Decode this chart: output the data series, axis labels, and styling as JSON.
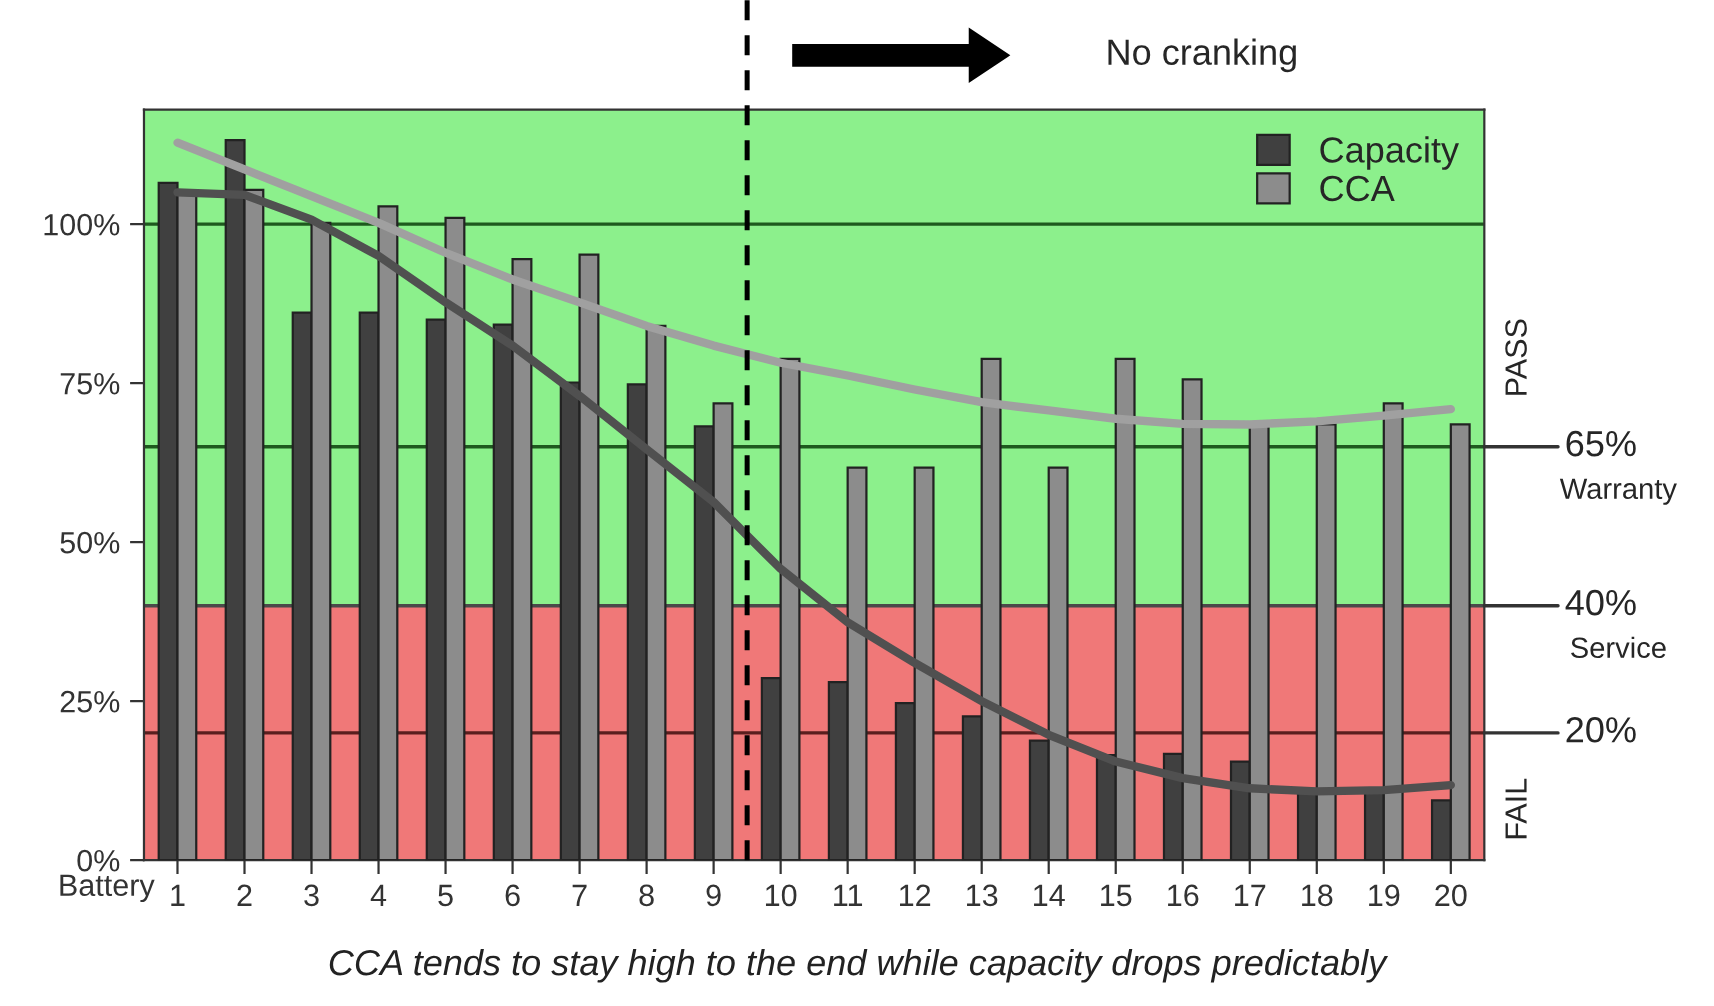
{
  "chart_data": {
    "type": "bar",
    "x": [
      1,
      2,
      3,
      4,
      5,
      6,
      7,
      8,
      9,
      10,
      11,
      12,
      13,
      14,
      15,
      16,
      17,
      18,
      19,
      20
    ],
    "xlabel": "Battery",
    "xlim": [
      0.5,
      20.5
    ],
    "xticks": [
      1,
      2,
      3,
      4,
      5,
      6,
      7,
      8,
      9,
      10,
      11,
      12,
      13,
      14,
      15,
      16,
      17,
      18,
      19,
      20
    ],
    "ylim": [
      0,
      118
    ],
    "yticks": [
      {
        "value": 0,
        "label": "0%"
      },
      {
        "value": 25,
        "label": "25%"
      },
      {
        "value": 50,
        "label": "50%"
      },
      {
        "value": 75,
        "label": "75%"
      },
      {
        "value": 100,
        "label": "100%"
      }
    ],
    "series": [
      {
        "name": "Capacity",
        "color": "#404040",
        "values": [
          106.5,
          113.2,
          86.1,
          86.1,
          85,
          84.2,
          75.1,
          74.8,
          68.2,
          28.6,
          28,
          24.7,
          22.6,
          18.8,
          16.5,
          16.7,
          15.5,
          10.8,
          10.6,
          9.4
        ]
      },
      {
        "name": "CCA",
        "color": "#8c8c8c",
        "values": [
          104.7,
          105.4,
          100.2,
          102.8,
          101,
          94.5,
          95.2,
          84,
          71.8,
          78.8,
          61.7,
          61.7,
          78.8,
          61.7,
          78.8,
          75.6,
          68.5,
          68.5,
          71.8,
          68.5
        ]
      },
      {
        "type": "line",
        "color": "#505050",
        "line_style": "solid",
        "values": [
          105,
          104.6,
          100.7,
          95,
          87.7,
          80.9,
          73,
          64.6,
          56.3,
          45.8,
          37.4,
          31,
          25,
          19.7,
          15.5,
          12.9,
          11.3,
          10.8,
          11,
          11.8
        ]
      },
      {
        "type": "line",
        "color": "#a0a0a0",
        "line_style": "solid",
        "values": [
          112.8,
          108.6,
          104.4,
          100.2,
          95.5,
          91.3,
          87.7,
          84,
          80.9,
          78.2,
          76.2,
          74,
          72,
          70.7,
          69.4,
          68.6,
          68.5,
          69,
          69.9,
          70.9
        ]
      }
    ],
    "bands": [
      {
        "axis": "y",
        "from": 40,
        "to": 118,
        "label": "PASS",
        "color": "#8cf08c"
      },
      {
        "axis": "y",
        "from": 0,
        "to": 40,
        "label": "FAIL",
        "color": "#f07878"
      }
    ],
    "ref_lines": [
      {
        "axis": "y",
        "value": 100,
        "label": null,
        "color": "#1e5a1e"
      },
      {
        "axis": "y",
        "value": 65,
        "label": "65%\nWarranty",
        "color": "#1e5a1e"
      },
      {
        "axis": "y",
        "value": 40,
        "label": "40%\nService",
        "color": "#4a4a4a"
      },
      {
        "axis": "y",
        "value": 20,
        "label": "20%",
        "color": "#5a1e1e"
      },
      {
        "axis": "x",
        "value": 9.5,
        "label": null,
        "color": "#000000",
        "line_style": "dashed"
      }
    ],
    "annotations": [
      "No cranking",
      "CCA tends to stay high to the end while capacity drops predictably"
    ],
    "legend": "top right",
    "grid": false
  }
}
